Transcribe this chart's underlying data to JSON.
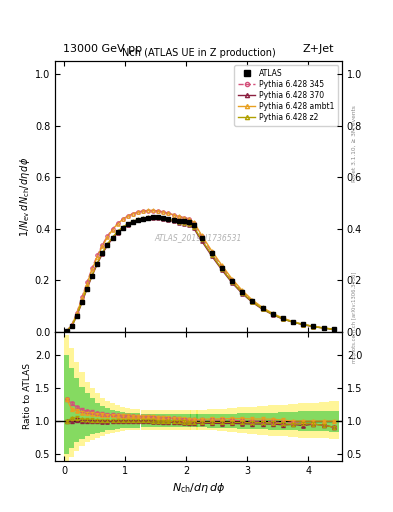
{
  "title_top": "13000 GeV pp",
  "title_right": "Z+Jet",
  "plot_title": "Nch (ATLAS UE in Z production)",
  "xlabel": "N_{ch}/d\\eta d\\phi",
  "ylabel_main": "1/N_{ev} dN_{ch}/d\\eta d\\phi",
  "ylabel_ratio": "Ratio to ATLAS",
  "watermark": "ATLAS_2019_I1736531",
  "rivet_label": "Rivet 3.1.10, ≥ 3M events",
  "mcplots_label": "mcplots.cern.ch [arXiv:1306.3436]",
  "xlim": [
    -0.15,
    4.55
  ],
  "ylim_main": [
    0.0,
    1.05
  ],
  "ylim_ratio": [
    0.4,
    2.35
  ],
  "yticks_main": [
    0.0,
    0.2,
    0.4,
    0.6,
    0.8,
    1.0
  ],
  "yticks_ratio": [
    0.5,
    1.0,
    1.5,
    2.0
  ],
  "xticks": [
    0,
    1,
    2,
    3,
    4
  ],
  "atlas_x": [
    0.0417,
    0.125,
    0.208,
    0.292,
    0.375,
    0.458,
    0.542,
    0.625,
    0.708,
    0.792,
    0.875,
    0.958,
    1.042,
    1.125,
    1.208,
    1.292,
    1.375,
    1.458,
    1.542,
    1.625,
    1.708,
    1.792,
    1.875,
    1.958,
    2.042,
    2.125,
    2.25,
    2.417,
    2.583,
    2.75,
    2.917,
    3.083,
    3.25,
    3.417,
    3.583,
    3.75,
    3.917,
    4.083,
    4.25,
    4.417
  ],
  "atlas_y": [
    0.003,
    0.022,
    0.062,
    0.115,
    0.168,
    0.218,
    0.265,
    0.305,
    0.338,
    0.365,
    0.387,
    0.405,
    0.418,
    0.428,
    0.435,
    0.44,
    0.443,
    0.445,
    0.445,
    0.443,
    0.44,
    0.436,
    0.432,
    0.43,
    0.428,
    0.415,
    0.365,
    0.305,
    0.25,
    0.198,
    0.155,
    0.12,
    0.092,
    0.07,
    0.053,
    0.04,
    0.03,
    0.022,
    0.016,
    0.011
  ],
  "py345_x": [
    0.0417,
    0.125,
    0.208,
    0.292,
    0.375,
    0.458,
    0.542,
    0.625,
    0.708,
    0.792,
    0.875,
    0.958,
    1.042,
    1.125,
    1.208,
    1.292,
    1.375,
    1.458,
    1.542,
    1.625,
    1.708,
    1.792,
    1.875,
    1.958,
    2.042,
    2.125,
    2.25,
    2.417,
    2.583,
    2.75,
    2.917,
    3.083,
    3.25,
    3.417,
    3.583,
    3.75,
    3.917,
    4.083,
    4.25,
    4.417
  ],
  "py345_y": [
    0.004,
    0.028,
    0.075,
    0.135,
    0.193,
    0.248,
    0.297,
    0.338,
    0.372,
    0.4,
    0.422,
    0.438,
    0.45,
    0.459,
    0.465,
    0.469,
    0.471,
    0.471,
    0.469,
    0.465,
    0.46,
    0.454,
    0.448,
    0.443,
    0.438,
    0.423,
    0.372,
    0.31,
    0.254,
    0.201,
    0.156,
    0.12,
    0.092,
    0.069,
    0.052,
    0.039,
    0.029,
    0.021,
    0.015,
    0.01
  ],
  "py370_x": [
    0.0417,
    0.125,
    0.208,
    0.292,
    0.375,
    0.458,
    0.542,
    0.625,
    0.708,
    0.792,
    0.875,
    0.958,
    1.042,
    1.125,
    1.208,
    1.292,
    1.375,
    1.458,
    1.542,
    1.625,
    1.708,
    1.792,
    1.875,
    1.958,
    2.042,
    2.125,
    2.25,
    2.417,
    2.583,
    2.75,
    2.917,
    3.083,
    3.25,
    3.417,
    3.583,
    3.75,
    3.917,
    4.083,
    4.25,
    4.417
  ],
  "py370_y": [
    0.003,
    0.022,
    0.063,
    0.115,
    0.168,
    0.218,
    0.264,
    0.303,
    0.336,
    0.363,
    0.385,
    0.403,
    0.416,
    0.426,
    0.433,
    0.438,
    0.441,
    0.442,
    0.441,
    0.438,
    0.434,
    0.429,
    0.424,
    0.42,
    0.416,
    0.402,
    0.354,
    0.295,
    0.241,
    0.191,
    0.149,
    0.115,
    0.088,
    0.067,
    0.05,
    0.038,
    0.028,
    0.021,
    0.015,
    0.01
  ],
  "pyambt1_x": [
    0.0417,
    0.125,
    0.208,
    0.292,
    0.375,
    0.458,
    0.542,
    0.625,
    0.708,
    0.792,
    0.875,
    0.958,
    1.042,
    1.125,
    1.208,
    1.292,
    1.375,
    1.458,
    1.542,
    1.625,
    1.708,
    1.792,
    1.875,
    1.958,
    2.042,
    2.125,
    2.25,
    2.417,
    2.583,
    2.75,
    2.917,
    3.083,
    3.25,
    3.417,
    3.583,
    3.75,
    3.917,
    4.083,
    4.25,
    4.417
  ],
  "pyambt1_y": [
    0.004,
    0.026,
    0.072,
    0.13,
    0.188,
    0.243,
    0.292,
    0.333,
    0.368,
    0.397,
    0.42,
    0.437,
    0.45,
    0.459,
    0.466,
    0.47,
    0.472,
    0.472,
    0.47,
    0.466,
    0.461,
    0.455,
    0.449,
    0.444,
    0.44,
    0.426,
    0.376,
    0.315,
    0.259,
    0.206,
    0.161,
    0.124,
    0.095,
    0.072,
    0.054,
    0.04,
    0.03,
    0.022,
    0.016,
    0.011
  ],
  "pyz2_x": [
    0.0417,
    0.125,
    0.208,
    0.292,
    0.375,
    0.458,
    0.542,
    0.625,
    0.708,
    0.792,
    0.875,
    0.958,
    1.042,
    1.125,
    1.208,
    1.292,
    1.375,
    1.458,
    1.542,
    1.625,
    1.708,
    1.792,
    1.875,
    1.958,
    2.042,
    2.125,
    2.25,
    2.417,
    2.583,
    2.75,
    2.917,
    3.083,
    3.25,
    3.417,
    3.583,
    3.75,
    3.917,
    4.083,
    4.25,
    4.417
  ],
  "pyz2_y": [
    0.003,
    0.023,
    0.065,
    0.118,
    0.172,
    0.222,
    0.268,
    0.308,
    0.341,
    0.368,
    0.39,
    0.407,
    0.42,
    0.43,
    0.437,
    0.442,
    0.445,
    0.446,
    0.445,
    0.442,
    0.438,
    0.433,
    0.428,
    0.424,
    0.42,
    0.407,
    0.359,
    0.3,
    0.245,
    0.195,
    0.152,
    0.117,
    0.09,
    0.068,
    0.051,
    0.038,
    0.029,
    0.021,
    0.015,
    0.01
  ],
  "color_345": "#d4507a",
  "color_370": "#8b2040",
  "color_ambt1": "#e8a020",
  "color_z2": "#b0a000",
  "color_atlas": "#000000",
  "band_yellow": "#ffee44",
  "band_green": "#44cc44",
  "band_yellow_alpha": 0.55,
  "band_green_alpha": 0.65,
  "ratio_x": [
    0.0417,
    0.125,
    0.208,
    0.292,
    0.375,
    0.458,
    0.542,
    0.625,
    0.708,
    0.792,
    0.875,
    0.958,
    1.042,
    1.125,
    1.208,
    1.292,
    1.375,
    1.458,
    1.542,
    1.625,
    1.708,
    1.792,
    1.875,
    1.958,
    2.042,
    2.125,
    2.25,
    2.417,
    2.583,
    2.75,
    2.917,
    3.083,
    3.25,
    3.417,
    3.583,
    3.75,
    3.917,
    4.083,
    4.25,
    4.417
  ],
  "ratio_345_y": [
    1.33,
    1.27,
    1.21,
    1.17,
    1.15,
    1.14,
    1.12,
    1.11,
    1.1,
    1.096,
    1.09,
    1.082,
    1.077,
    1.072,
    1.069,
    1.066,
    1.063,
    1.058,
    1.054,
    1.05,
    1.045,
    1.041,
    1.037,
    1.03,
    1.023,
    1.019,
    1.019,
    1.016,
    1.016,
    1.015,
    1.006,
    1.0,
    1.0,
    0.986,
    0.981,
    0.975,
    0.967,
    0.955,
    0.938,
    0.909
  ],
  "ratio_370_y": [
    1.0,
    1.0,
    1.016,
    1.0,
    1.0,
    1.0,
    0.998,
    0.993,
    0.994,
    0.995,
    0.995,
    0.995,
    0.995,
    0.995,
    0.995,
    0.995,
    0.995,
    0.994,
    0.991,
    0.989,
    0.986,
    0.984,
    0.981,
    0.977,
    0.972,
    0.968,
    0.969,
    0.967,
    0.964,
    0.965,
    0.961,
    0.958,
    0.957,
    0.957,
    0.943,
    0.95,
    0.933,
    0.955,
    0.938,
    0.909
  ],
  "ratio_ambt1_y": [
    1.33,
    1.18,
    1.16,
    1.13,
    1.12,
    1.115,
    1.103,
    1.092,
    1.089,
    1.087,
    1.085,
    1.079,
    1.077,
    1.072,
    1.071,
    1.068,
    1.066,
    1.061,
    1.056,
    1.052,
    1.048,
    1.044,
    1.04,
    1.033,
    1.028,
    1.026,
    1.03,
    1.033,
    1.036,
    1.04,
    1.039,
    1.033,
    1.033,
    1.029,
    1.019,
    1.0,
    1.0,
    1.0,
    1.0,
    1.0
  ],
  "ratio_z2_y": [
    1.0,
    1.045,
    1.048,
    1.026,
    1.024,
    1.018,
    1.011,
    1.01,
    1.009,
    1.008,
    1.008,
    1.005,
    1.005,
    1.005,
    1.005,
    1.005,
    1.005,
    1.002,
    1.0,
    0.998,
    0.995,
    0.993,
    0.991,
    0.986,
    0.981,
    0.979,
    0.983,
    0.984,
    0.98,
    0.985,
    0.981,
    0.975,
    0.978,
    0.971,
    0.962,
    0.95,
    0.967,
    0.955,
    0.938,
    0.909
  ],
  "yellow_lo": [
    0.35,
    0.45,
    0.55,
    0.62,
    0.68,
    0.72,
    0.75,
    0.78,
    0.8,
    0.82,
    0.84,
    0.85,
    0.86,
    0.87,
    0.87,
    0.87,
    0.87,
    0.87,
    0.87,
    0.87,
    0.87,
    0.87,
    0.87,
    0.87,
    0.87,
    0.87,
    0.87,
    0.86,
    0.85,
    0.83,
    0.82,
    0.8,
    0.79,
    0.78,
    0.77,
    0.76,
    0.75,
    0.74,
    0.74,
    0.73
  ],
  "yellow_hi": [
    2.3,
    2.1,
    1.9,
    1.75,
    1.6,
    1.5,
    1.42,
    1.35,
    1.3,
    1.27,
    1.24,
    1.22,
    1.2,
    1.19,
    1.18,
    1.17,
    1.17,
    1.17,
    1.17,
    1.17,
    1.17,
    1.17,
    1.17,
    1.17,
    1.17,
    1.17,
    1.17,
    1.18,
    1.19,
    1.2,
    1.21,
    1.22,
    1.23,
    1.24,
    1.25,
    1.26,
    1.27,
    1.28,
    1.29,
    1.3
  ],
  "green_lo": [
    0.5,
    0.6,
    0.68,
    0.73,
    0.77,
    0.8,
    0.82,
    0.84,
    0.86,
    0.87,
    0.88,
    0.89,
    0.895,
    0.9,
    0.9,
    0.905,
    0.905,
    0.905,
    0.905,
    0.905,
    0.905,
    0.905,
    0.905,
    0.905,
    0.905,
    0.905,
    0.905,
    0.9,
    0.895,
    0.89,
    0.885,
    0.88,
    0.875,
    0.87,
    0.865,
    0.86,
    0.855,
    0.85,
    0.845,
    0.84
  ],
  "green_hi": [
    2.0,
    1.8,
    1.65,
    1.52,
    1.42,
    1.35,
    1.28,
    1.23,
    1.2,
    1.17,
    1.15,
    1.14,
    1.13,
    1.12,
    1.12,
    1.11,
    1.11,
    1.11,
    1.11,
    1.11,
    1.11,
    1.11,
    1.11,
    1.11,
    1.11,
    1.11,
    1.11,
    1.11,
    1.11,
    1.11,
    1.12,
    1.12,
    1.13,
    1.13,
    1.14,
    1.14,
    1.15,
    1.15,
    1.16,
    1.16
  ]
}
